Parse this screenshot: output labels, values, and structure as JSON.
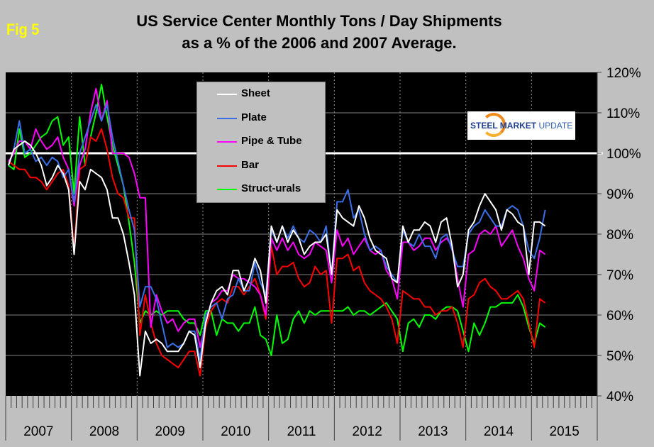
{
  "figure_label": "Fig 5",
  "title_line1": "US Service Center Monthly Tons / Day Shipments",
  "title_line2": "as a % of the 2006 and 2007 Average.",
  "logo": {
    "bold": "STEEL MARKET",
    "light": "UPDATE"
  },
  "chart_data": {
    "type": "line",
    "title": "US Service Center Monthly Tons / Day Shipments as a % of the 2006 and 2007 Average.",
    "xlabel": "",
    "ylabel": "",
    "ylim": [
      40,
      120
    ],
    "yticks": [
      40,
      50,
      60,
      70,
      80,
      90,
      100,
      110,
      120
    ],
    "ytick_labels": [
      "40%",
      "50%",
      "60%",
      "70%",
      "80%",
      "90%",
      "100%",
      "110%",
      "120%"
    ],
    "x_start": "2007-01",
    "x_end": "2015-12",
    "x_year_labels": [
      "2007",
      "2008",
      "2009",
      "2010",
      "2011",
      "2012",
      "2013",
      "2014",
      "2015"
    ],
    "reference_line": {
      "value": 100,
      "color": "#ffffff"
    },
    "grid": true,
    "legend_position": "top-center",
    "months_start": "2007-01",
    "series": [
      {
        "name": "Sheet",
        "color": "#ffffff",
        "values": [
          97,
          101,
          102,
          103,
          102,
          100,
          97,
          92,
          94,
          97,
          95,
          91,
          75,
          93,
          91,
          96,
          95,
          94,
          91,
          84,
          84,
          80,
          73,
          65,
          45,
          56,
          53,
          54,
          53,
          51,
          51,
          51,
          53,
          56,
          55,
          47,
          58,
          63,
          66,
          67,
          65,
          71,
          71,
          66,
          69,
          74,
          71,
          63,
          82,
          78,
          82,
          78,
          81,
          79,
          75,
          77,
          78,
          78,
          80,
          70,
          86,
          84,
          83,
          82,
          87,
          84,
          79,
          76,
          75,
          74,
          69,
          68,
          82,
          78,
          81,
          81,
          83,
          82,
          78,
          83,
          84,
          77,
          67,
          70,
          81,
          83,
          87,
          90,
          88,
          86,
          81,
          86,
          85,
          83,
          82,
          70,
          83,
          83,
          82
        ],
        "_": ""
      },
      {
        "name": "Plate",
        "color": "#3b6fe8",
        "values": [
          97,
          101,
          108,
          100,
          101,
          98,
          99,
          97,
          99,
          98,
          94,
          96,
          88,
          100,
          104,
          108,
          112,
          108,
          112,
          104,
          98,
          92,
          86,
          81,
          62,
          67,
          67,
          64,
          58,
          52,
          53,
          52,
          53,
          56,
          56,
          49,
          60,
          62,
          63,
          59,
          64,
          65,
          69,
          66,
          66,
          73,
          68,
          65,
          81,
          78,
          82,
          79,
          82,
          79,
          78,
          81,
          80,
          78,
          82,
          70,
          88,
          88,
          91,
          84,
          86,
          80,
          76,
          77,
          76,
          72,
          70,
          68,
          81,
          78,
          77,
          80,
          77,
          77,
          74,
          79,
          80,
          76,
          72,
          72,
          80,
          82,
          83,
          86,
          84,
          82,
          82,
          86,
          87,
          86,
          82,
          76,
          74,
          79,
          86
        ]
      },
      {
        "name": "Pipe & Tube",
        "color": "#ff00ff",
        "values": [
          98,
          100,
          103,
          103,
          101,
          106,
          103,
          101,
          102,
          104,
          99,
          96,
          87,
          97,
          101,
          110,
          116,
          108,
          113,
          100,
          100,
          100,
          99,
          95,
          89,
          89,
          57,
          65,
          61,
          58,
          59,
          56,
          58,
          59,
          59,
          52,
          58,
          63,
          64,
          66,
          66,
          70,
          69,
          69,
          68,
          67,
          65,
          60,
          79,
          76,
          79,
          76,
          78,
          75,
          74,
          75,
          78,
          77,
          76,
          68,
          81,
          77,
          79,
          75,
          77,
          79,
          76,
          75,
          76,
          71,
          69,
          64,
          78,
          78,
          76,
          77,
          79,
          79,
          76,
          78,
          79,
          77,
          69,
          62,
          75,
          76,
          80,
          81,
          80,
          82,
          77,
          79,
          81,
          77,
          74,
          69,
          66,
          76,
          75
        ]
      },
      {
        "name": "Bar",
        "color": "#ff0000",
        "values": [
          98,
          97,
          96,
          96,
          94,
          94,
          93,
          91,
          93,
          95,
          96,
          92,
          76,
          96,
          97,
          104,
          103,
          106,
          101,
          94,
          90,
          89,
          84,
          84,
          55,
          65,
          58,
          53,
          50,
          49,
          48,
          47,
          49,
          51,
          51,
          45,
          57,
          61,
          63,
          64,
          63,
          67,
          67,
          65,
          67,
          69,
          65,
          59,
          77,
          70,
          72,
          72,
          73,
          69,
          67,
          68,
          72,
          70,
          71,
          58,
          74,
          74,
          75,
          71,
          72,
          68,
          66,
          65,
          64,
          62,
          59,
          53,
          66,
          65,
          64,
          64,
          62,
          62,
          60,
          61,
          61,
          62,
          58,
          52,
          64,
          65,
          68,
          69,
          67,
          66,
          64,
          64,
          65,
          66,
          64,
          58,
          52,
          64,
          63
        ]
      },
      {
        "name": "Struct-urals",
        "color": "#00ff00",
        "values": [
          97,
          96,
          106,
          99,
          100,
          102,
          104,
          105,
          108,
          109,
          102,
          104,
          90,
          109,
          97,
          104,
          110,
          117,
          109,
          102,
          97,
          92,
          83,
          73,
          58,
          61,
          60,
          61,
          60,
          61,
          61,
          61,
          59,
          58,
          58,
          55,
          61,
          61,
          55,
          59,
          58,
          58,
          56,
          58,
          58,
          62,
          55,
          54,
          50,
          60,
          53,
          54,
          59,
          61,
          58,
          61,
          60,
          61,
          61,
          61,
          61,
          61,
          62,
          60,
          61,
          61,
          60,
          61,
          62,
          63,
          61,
          59,
          51,
          58,
          59,
          57,
          60,
          60,
          59,
          61,
          62,
          62,
          61,
          56,
          51,
          58,
          55,
          58,
          62,
          62,
          63,
          63,
          63,
          65,
          62,
          57,
          53,
          58,
          57
        ]
      }
    ]
  }
}
